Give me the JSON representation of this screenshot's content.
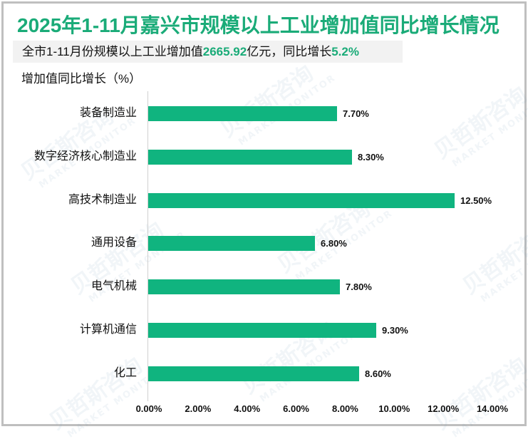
{
  "title": "2025年1-11月嘉兴市规模以上工业增加值同比增长情况",
  "subtitle": {
    "prefix": "全市1-11月份规模以上工业增加值",
    "value": "2665.92",
    "middle": "亿元，同比增长",
    "growth": "5.2%"
  },
  "y_axis_title": "增加值同比增长（%）",
  "watermark": {
    "cn": "贝哲斯咨询",
    "en": "MARKET MONITOR"
  },
  "colors": {
    "bar": "#10b47f",
    "title": "#1aab78",
    "accent": "#1aab78"
  },
  "chart_data": {
    "type": "bar",
    "orientation": "horizontal",
    "title": "2025年1-11月嘉兴市规模以上工业增加值同比增长情况",
    "subtitle": "全市1-11月份规模以上工业增加值2665.92亿元，同比增长5.2%",
    "xlabel": "",
    "ylabel": "增加值同比增长（%）",
    "categories": [
      "装备制造业",
      "数字经济核心制造业",
      "高技术制造业",
      "通用设备",
      "电气机械",
      "计算机通信",
      "化工"
    ],
    "values": [
      7.7,
      8.3,
      12.5,
      6.8,
      7.8,
      9.3,
      8.6
    ],
    "labels": [
      "7.70%",
      "8.30%",
      "12.50%",
      "6.80%",
      "7.80%",
      "9.30%",
      "8.60%"
    ],
    "xlim": [
      0,
      14
    ],
    "x_ticks": [
      "0.00%",
      "2.00%",
      "4.00%",
      "6.00%",
      "8.00%",
      "10.00%",
      "12.00%",
      "14.00%"
    ],
    "grid": false,
    "legend": null
  }
}
